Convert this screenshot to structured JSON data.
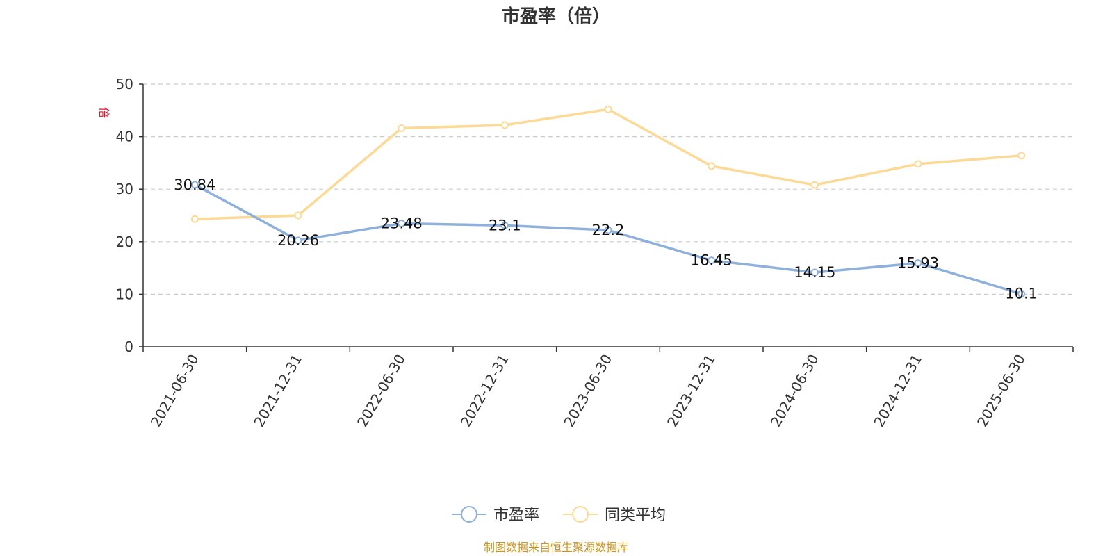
{
  "chart_data": {
    "type": "line",
    "title": "市盈率（倍）",
    "ylabel": "倍",
    "ylim": [
      0,
      50
    ],
    "yticks": [
      0,
      10,
      20,
      30,
      40,
      50
    ],
    "categories": [
      "2021-06-30",
      "2021-12-31",
      "2022-06-30",
      "2022-12-31",
      "2023-06-30",
      "2023-12-31",
      "2024-06-30",
      "2024-12-31",
      "2025-06-30"
    ],
    "series": [
      {
        "name": "市盈率",
        "color": "#8eb0dd",
        "values": [
          30.84,
          20.26,
          23.48,
          23.1,
          22.2,
          16.45,
          14.15,
          15.93,
          10.1
        ],
        "labels": [
          "30.84",
          "20.26",
          "23.48",
          "23.1",
          "22.2",
          "16.45",
          "14.15",
          "15.93",
          "10.1"
        ]
      },
      {
        "name": "同类平均",
        "color": "#fcd995",
        "values": [
          24.3,
          25.0,
          41.6,
          42.2,
          45.2,
          34.4,
          30.8,
          34.8,
          36.4
        ]
      }
    ],
    "grid": "horizontal-dashed",
    "legend_position": "bottom-center"
  },
  "source_text": "制图数据来自恒生聚源数据库",
  "colors": {
    "unit_label": "#e0102a",
    "source_text": "#c9941f",
    "axis": "#333333",
    "grid": "#cccccc"
  }
}
